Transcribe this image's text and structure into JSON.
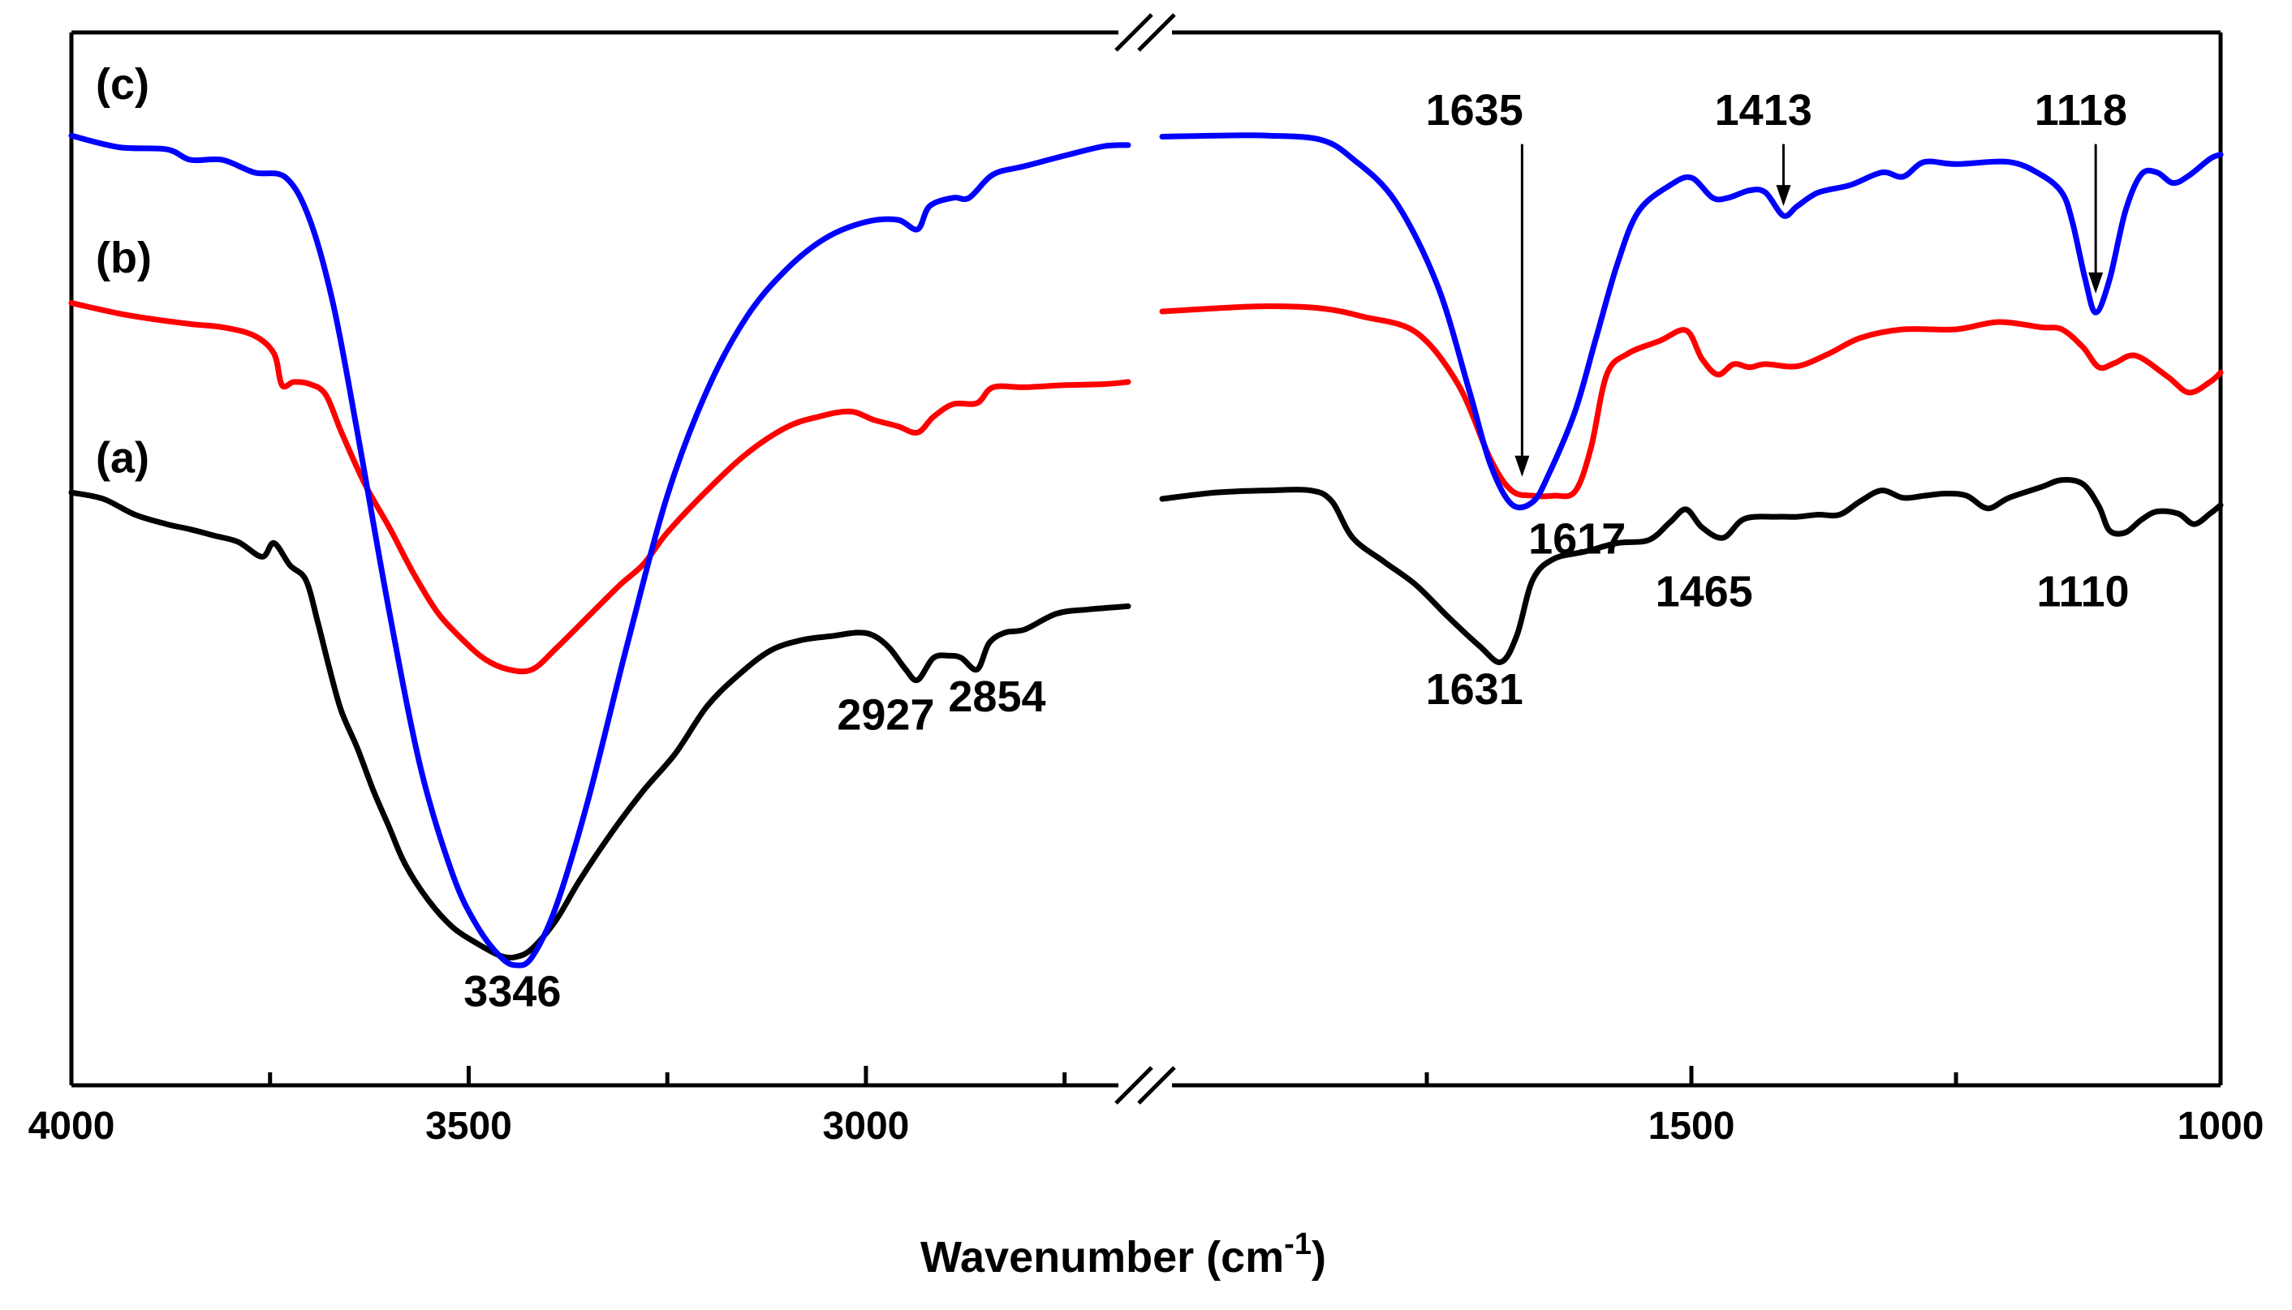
{
  "chart_data": {
    "type": "line",
    "title": "",
    "xlabel": "Wavenumber (cm",
    "xlabel_superscript": "-1",
    "xlabel_suffix": ")",
    "ylabel": "",
    "broken_axis": true,
    "segments": [
      {
        "name": "left",
        "xlim": [
          4000,
          2670
        ]
      },
      {
        "name": "right",
        "xlim": [
          2000,
          1000
        ]
      }
    ],
    "ylim": [
      0,
      100
    ],
    "x_tick_labels": [
      {
        "value": 4000,
        "label": "4000"
      },
      {
        "value": 3500,
        "label": "3500"
      },
      {
        "value": 3000,
        "label": "3000"
      },
      {
        "value": 1500,
        "label": "1500"
      },
      {
        "value": 1000,
        "label": "1000"
      }
    ],
    "minor_ticks": [
      3750,
      3250,
      2750,
      1750,
      1250
    ],
    "series": [
      {
        "name": "(c)",
        "color": "#0000ff",
        "label_pos": {
          "x": 4000,
          "y": 93.7
        },
        "left": [
          [
            4000,
            90.2
          ],
          [
            3940,
            89.1
          ],
          [
            3880,
            88.9
          ],
          [
            3850,
            87.9
          ],
          [
            3810,
            87.9
          ],
          [
            3770,
            86.7
          ],
          [
            3730,
            86.2
          ],
          [
            3700,
            82.2
          ],
          [
            3670,
            74
          ],
          [
            3640,
            62
          ],
          [
            3600,
            45
          ],
          [
            3560,
            30
          ],
          [
            3520,
            20
          ],
          [
            3490,
            15.2
          ],
          [
            3460,
            12.2
          ],
          [
            3440,
            11.4
          ],
          [
            3420,
            12.2
          ],
          [
            3390,
            17
          ],
          [
            3350,
            27
          ],
          [
            3300,
            42
          ],
          [
            3250,
            56
          ],
          [
            3200,
            66
          ],
          [
            3150,
            73
          ],
          [
            3100,
            77.5
          ],
          [
            3050,
            80.5
          ],
          [
            3000,
            82
          ],
          [
            2960,
            82.2
          ],
          [
            2935,
            81.3
          ],
          [
            2920,
            83.5
          ],
          [
            2890,
            84.3
          ],
          [
            2870,
            84.3
          ],
          [
            2840,
            86.5
          ],
          [
            2800,
            87.3
          ],
          [
            2750,
            88.3
          ],
          [
            2700,
            89.2
          ],
          [
            2670,
            89.3
          ]
        ],
        "right": [
          [
            2000,
            90.1
          ],
          [
            1950,
            90.2
          ],
          [
            1900,
            90.2
          ],
          [
            1850,
            89.8
          ],
          [
            1820,
            88
          ],
          [
            1780,
            84
          ],
          [
            1740,
            76
          ],
          [
            1710,
            66
          ],
          [
            1690,
            59
          ],
          [
            1670,
            55.2
          ],
          [
            1650,
            55.4
          ],
          [
            1635,
            58
          ],
          [
            1610,
            64
          ],
          [
            1590,
            71
          ],
          [
            1570,
            78
          ],
          [
            1550,
            83
          ],
          [
            1520,
            85.5
          ],
          [
            1500,
            86.2
          ],
          [
            1480,
            84.3
          ],
          [
            1465,
            84.3
          ],
          [
            1445,
            85
          ],
          [
            1430,
            84.8
          ],
          [
            1413,
            82.6
          ],
          [
            1400,
            83.5
          ],
          [
            1380,
            84.8
          ],
          [
            1350,
            85.5
          ],
          [
            1320,
            86.7
          ],
          [
            1300,
            86.3
          ],
          [
            1280,
            87.7
          ],
          [
            1250,
            87.5
          ],
          [
            1200,
            87.7
          ],
          [
            1170,
            86.5
          ],
          [
            1150,
            84.8
          ],
          [
            1140,
            82
          ],
          [
            1128,
            76.6
          ],
          [
            1118,
            73.4
          ],
          [
            1105,
            76.5
          ],
          [
            1090,
            83
          ],
          [
            1075,
            86.5
          ],
          [
            1060,
            86.7
          ],
          [
            1045,
            85.7
          ],
          [
            1030,
            86.4
          ],
          [
            1010,
            88
          ],
          [
            1000,
            88.4
          ]
        ]
      },
      {
        "name": "(b)",
        "color": "#ff0000",
        "label_pos": {
          "x": 4000,
          "y": 77.2
        },
        "left": [
          [
            4000,
            74.3
          ],
          [
            3940,
            73.3
          ],
          [
            3900,
            72.8
          ],
          [
            3850,
            72.3
          ],
          [
            3810,
            72
          ],
          [
            3770,
            71.2
          ],
          [
            3745,
            69.5
          ],
          [
            3735,
            66.5
          ],
          [
            3720,
            66.8
          ],
          [
            3700,
            66.6
          ],
          [
            3680,
            65.6
          ],
          [
            3660,
            62
          ],
          [
            3630,
            57
          ],
          [
            3600,
            53
          ],
          [
            3570,
            48.7
          ],
          [
            3540,
            45
          ],
          [
            3510,
            42.5
          ],
          [
            3480,
            40.5
          ],
          [
            3450,
            39.5
          ],
          [
            3420,
            39.5
          ],
          [
            3390,
            41.5
          ],
          [
            3350,
            44.5
          ],
          [
            3310,
            47.5
          ],
          [
            3280,
            49.5
          ],
          [
            3250,
            52.5
          ],
          [
            3200,
            56.5
          ],
          [
            3150,
            60
          ],
          [
            3100,
            62.5
          ],
          [
            3060,
            63.5
          ],
          [
            3020,
            64
          ],
          [
            2990,
            63.2
          ],
          [
            2960,
            62.6
          ],
          [
            2935,
            62
          ],
          [
            2915,
            63.5
          ],
          [
            2890,
            64.7
          ],
          [
            2860,
            64.8
          ],
          [
            2840,
            66.3
          ],
          [
            2800,
            66.3
          ],
          [
            2750,
            66.5
          ],
          [
            2700,
            66.6
          ],
          [
            2670,
            66.8
          ]
        ],
        "right": [
          [
            2000,
            73.5
          ],
          [
            1950,
            73.8
          ],
          [
            1900,
            74
          ],
          [
            1850,
            73.8
          ],
          [
            1810,
            73
          ],
          [
            1760,
            71.5
          ],
          [
            1720,
            66.5
          ],
          [
            1690,
            59.5
          ],
          [
            1670,
            56.5
          ],
          [
            1650,
            56
          ],
          [
            1630,
            56
          ],
          [
            1610,
            56.4
          ],
          [
            1595,
            60.5
          ],
          [
            1580,
            67.5
          ],
          [
            1560,
            69.5
          ],
          [
            1530,
            70.7
          ],
          [
            1505,
            71.7
          ],
          [
            1490,
            69
          ],
          [
            1475,
            67.5
          ],
          [
            1460,
            68.5
          ],
          [
            1445,
            68.2
          ],
          [
            1430,
            68.5
          ],
          [
            1400,
            68.3
          ],
          [
            1370,
            69.5
          ],
          [
            1340,
            71
          ],
          [
            1300,
            71.8
          ],
          [
            1250,
            71.8
          ],
          [
            1210,
            72.5
          ],
          [
            1170,
            72
          ],
          [
            1150,
            71.8
          ],
          [
            1130,
            70.1
          ],
          [
            1115,
            68.2
          ],
          [
            1100,
            68.6
          ],
          [
            1080,
            69.3
          ],
          [
            1050,
            67.3
          ],
          [
            1030,
            65.8
          ],
          [
            1010,
            66.8
          ],
          [
            1000,
            67.7
          ]
        ]
      },
      {
        "name": "(a)",
        "color": "#000000",
        "label_pos": {
          "x": 4000,
          "y": 58.2
        },
        "left": [
          [
            4000,
            56.3
          ],
          [
            3960,
            55.7
          ],
          [
            3920,
            54.2
          ],
          [
            3880,
            53.3
          ],
          [
            3850,
            52.8
          ],
          [
            3820,
            52.2
          ],
          [
            3790,
            51.6
          ],
          [
            3760,
            50.2
          ],
          [
            3745,
            51.5
          ],
          [
            3725,
            49.4
          ],
          [
            3705,
            48
          ],
          [
            3690,
            44
          ],
          [
            3675,
            39.5
          ],
          [
            3660,
            35.5
          ],
          [
            3640,
            32
          ],
          [
            3620,
            28
          ],
          [
            3600,
            24.5
          ],
          [
            3580,
            21
          ],
          [
            3550,
            17.5
          ],
          [
            3520,
            15
          ],
          [
            3490,
            13.5
          ],
          [
            3460,
            12.3
          ],
          [
            3440,
            12.2
          ],
          [
            3420,
            13
          ],
          [
            3390,
            15.7
          ],
          [
            3360,
            19.5
          ],
          [
            3320,
            24
          ],
          [
            3280,
            28
          ],
          [
            3240,
            31.5
          ],
          [
            3200,
            36
          ],
          [
            3160,
            39
          ],
          [
            3120,
            41.3
          ],
          [
            3080,
            42.3
          ],
          [
            3040,
            42.7
          ],
          [
            3010,
            43
          ],
          [
            2990,
            42.7
          ],
          [
            2970,
            41.5
          ],
          [
            2950,
            39.5
          ],
          [
            2935,
            38.5
          ],
          [
            2915,
            40.6
          ],
          [
            2895,
            40.8
          ],
          [
            2880,
            40.6
          ],
          [
            2860,
            39.5
          ],
          [
            2845,
            42
          ],
          [
            2825,
            43
          ],
          [
            2800,
            43.3
          ],
          [
            2760,
            44.8
          ],
          [
            2720,
            45.2
          ],
          [
            2670,
            45.5
          ]
        ],
        "right": [
          [
            2000,
            55.7
          ],
          [
            1950,
            56.3
          ],
          [
            1900,
            56.5
          ],
          [
            1860,
            56.5
          ],
          [
            1840,
            55.5
          ],
          [
            1820,
            52
          ],
          [
            1790,
            49.7
          ],
          [
            1760,
            47.5
          ],
          [
            1730,
            44.5
          ],
          [
            1700,
            41.7
          ],
          [
            1680,
            40.2
          ],
          [
            1665,
            42.7
          ],
          [
            1650,
            48
          ],
          [
            1630,
            50
          ],
          [
            1600,
            50.7
          ],
          [
            1570,
            51.5
          ],
          [
            1540,
            51.8
          ],
          [
            1520,
            53.5
          ],
          [
            1505,
            54.7
          ],
          [
            1490,
            53
          ],
          [
            1470,
            52
          ],
          [
            1450,
            53.8
          ],
          [
            1420,
            54
          ],
          [
            1400,
            54
          ],
          [
            1380,
            54.2
          ],
          [
            1360,
            54.2
          ],
          [
            1340,
            55.5
          ],
          [
            1320,
            56.5
          ],
          [
            1300,
            55.8
          ],
          [
            1280,
            56
          ],
          [
            1260,
            56.2
          ],
          [
            1240,
            56
          ],
          [
            1220,
            54.8
          ],
          [
            1200,
            55.8
          ],
          [
            1170,
            56.8
          ],
          [
            1150,
            57.5
          ],
          [
            1130,
            57.1
          ],
          [
            1115,
            55
          ],
          [
            1105,
            52.7
          ],
          [
            1090,
            52.5
          ],
          [
            1075,
            53.7
          ],
          [
            1060,
            54.5
          ],
          [
            1040,
            54.3
          ],
          [
            1025,
            53.3
          ],
          [
            1010,
            54.3
          ],
          [
            1000,
            55.1
          ]
        ]
      }
    ],
    "annotations": [
      {
        "text": "3346",
        "x": 3445,
        "y": 7.5,
        "arrow": false
      },
      {
        "text": "2927",
        "x": 2975,
        "y": 33.8,
        "arrow": false
      },
      {
        "text": "2854",
        "x": 2835,
        "y": 35.5,
        "arrow": false
      },
      {
        "text": "1635",
        "x": 1705,
        "y": 91.2,
        "arrow": true,
        "arrow_x": 1660,
        "arrow_from": 89.4,
        "arrow_to": 57.8
      },
      {
        "text": "1413",
        "x": 1432,
        "y": 91.2,
        "arrow": true,
        "arrow_x": 1413,
        "arrow_from": 89.4,
        "arrow_to": 83.5
      },
      {
        "text": "1118",
        "x": 1132,
        "y": 91.2,
        "arrow": true,
        "arrow_x": 1118,
        "arrow_from": 89.4,
        "arrow_to": 75.2
      },
      {
        "text": "1617",
        "x": 1608,
        "y": 50.5,
        "arrow": false
      },
      {
        "text": "1631",
        "x": 1705,
        "y": 36.2,
        "arrow": false
      },
      {
        "text": "1465",
        "x": 1488,
        "y": 45.5,
        "arrow": false
      },
      {
        "text": "1110",
        "x": 1130,
        "y": 45.5,
        "arrow": false
      }
    ]
  }
}
